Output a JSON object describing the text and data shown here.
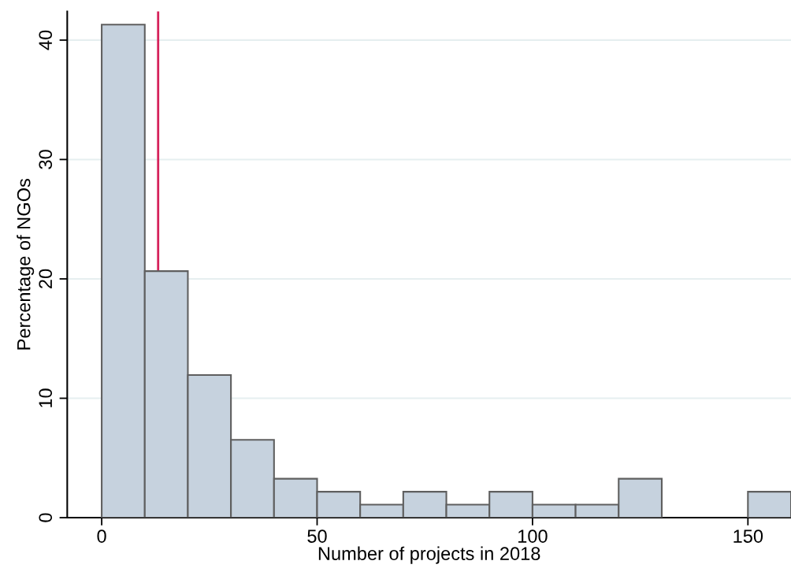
{
  "chart_data": {
    "type": "histogram",
    "xlabel": "Number of projects in 2018",
    "ylabel": "Percentage of NGOs",
    "bins": [
      0,
      10,
      20,
      30,
      40,
      50,
      60,
      70,
      80,
      90,
      100,
      110,
      120,
      130,
      140,
      150,
      160
    ],
    "values": [
      41.3,
      20.65,
      11.95,
      6.52,
      3.26,
      2.17,
      1.09,
      2.17,
      1.09,
      2.17,
      1.09,
      1.09,
      3.26,
      0,
      0,
      2.17
    ],
    "color": "#c6d2de",
    "xlim": [
      -8,
      160
    ],
    "ylim": [
      0,
      42.4
    ],
    "xticks": [
      0,
      50,
      100,
      150
    ],
    "yticks": [
      0,
      10,
      20,
      30,
      40
    ],
    "grid": "y",
    "ref_lines": [
      {
        "axis": "x",
        "value": 13.1,
        "color": "#d6215a"
      }
    ]
  }
}
